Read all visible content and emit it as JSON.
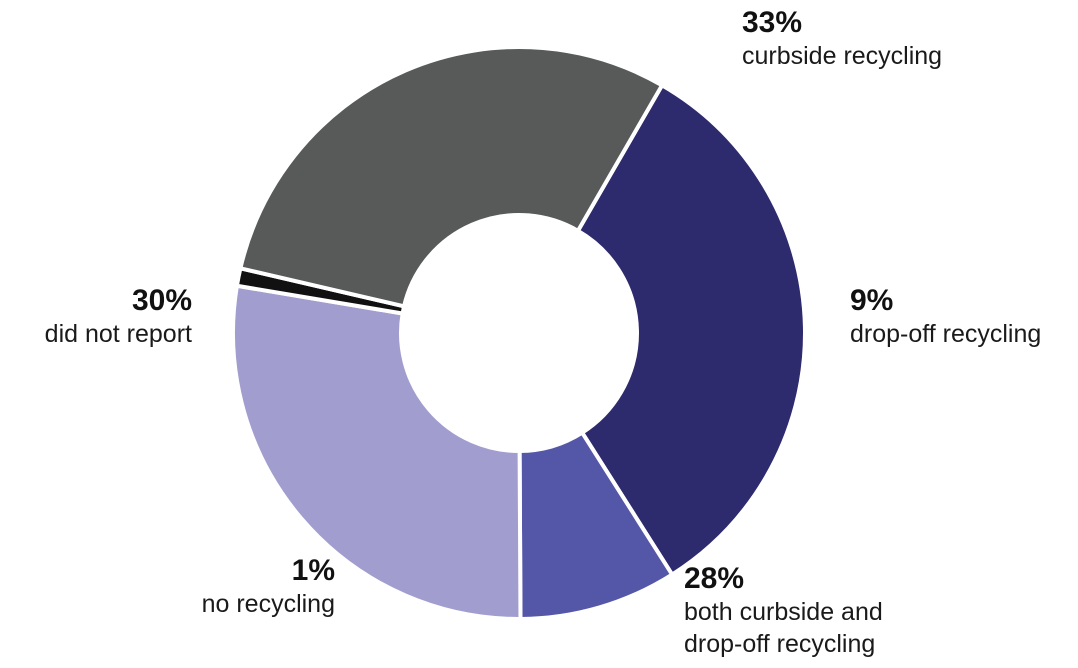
{
  "chart_data": {
    "type": "pie",
    "donut": true,
    "title": "",
    "legend": "none",
    "slices": [
      {
        "value_label": "33%",
        "value": 33,
        "label_lines": [
          "curbside recycling"
        ],
        "color": "#2e2a6e"
      },
      {
        "value_label": "9%",
        "value": 9,
        "label_lines": [
          "drop-off recycling"
        ],
        "color": "#5457a8"
      },
      {
        "value_label": "28%",
        "value": 28,
        "label_lines": [
          "both curbside and",
          "drop-off recycling"
        ],
        "color": "#a19ecf"
      },
      {
        "value_label": "1%",
        "value": 1,
        "label_lines": [
          "no recycling"
        ],
        "color": "#111111"
      },
      {
        "value_label": "30%",
        "value": 30,
        "label_lines": [
          "did not report"
        ],
        "color": "#575a59"
      }
    ]
  }
}
